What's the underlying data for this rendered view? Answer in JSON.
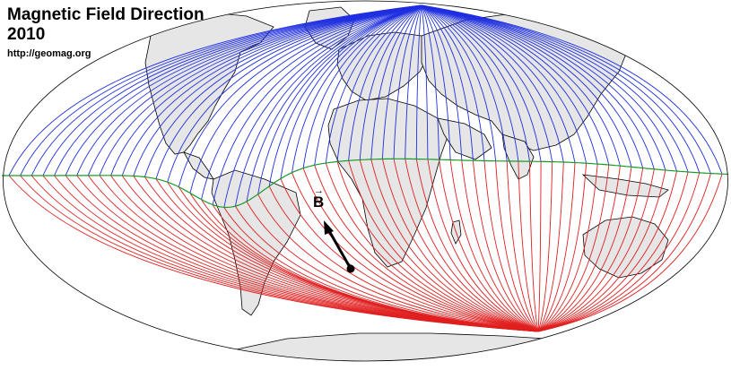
{
  "title": {
    "line1": "Magnetic Field Direction",
    "line2": "2010",
    "url": "http://geomag.org"
  },
  "field_vector": {
    "label": "B"
  },
  "colors": {
    "north_lines": "#1f2fe0",
    "south_lines": "#e01f1f",
    "dip_equator": "#1a9a2a",
    "land_fill": "#e6e6e6",
    "coast": "#000000",
    "map_outline": "#000000",
    "background": "#ffffff"
  },
  "icons": {
    "field_arrow": "arrow-icon"
  }
}
